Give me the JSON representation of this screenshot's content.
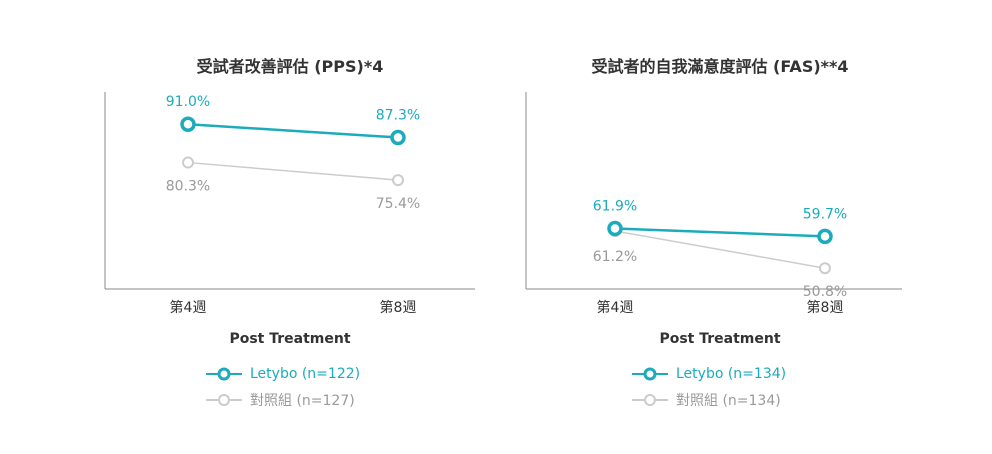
{
  "colors": {
    "letybo": "#1cabbd",
    "control": "#cccccc",
    "axis": "#888888",
    "text": "#333333",
    "control_text": "#9a9a9a"
  },
  "xaxis_title": "Post Treatment",
  "chart_data": [
    {
      "type": "line",
      "title": "受試者改善評估 (PPS)*4",
      "xlabel": "Post Treatment",
      "categories": [
        "第4週",
        "第8週"
      ],
      "ylim": [
        45,
        100
      ],
      "series": [
        {
          "name": "Letybo (n=122)",
          "key": "letybo",
          "values": [
            91.0,
            87.3
          ],
          "labels": [
            "91.0%",
            "87.3%"
          ]
        },
        {
          "name": "對照組 (n=127)",
          "key": "control",
          "values": [
            80.3,
            75.4
          ],
          "labels": [
            "80.3%",
            "75.4%"
          ]
        }
      ]
    },
    {
      "type": "line",
      "title": "受試者的自我滿意度評估 (FAS)**4",
      "xlabel": "Post Treatment",
      "categories": [
        "第4週",
        "第8週"
      ],
      "ylim": [
        45,
        100
      ],
      "series": [
        {
          "name": "Letybo (n=134)",
          "key": "letybo",
          "values": [
            61.9,
            59.7
          ],
          "labels": [
            "61.9%",
            "59.7%"
          ]
        },
        {
          "name": "對照組 (n=134)",
          "key": "control",
          "values": [
            61.2,
            50.8
          ],
          "labels": [
            "61.2%",
            "50.8%"
          ]
        }
      ]
    }
  ]
}
